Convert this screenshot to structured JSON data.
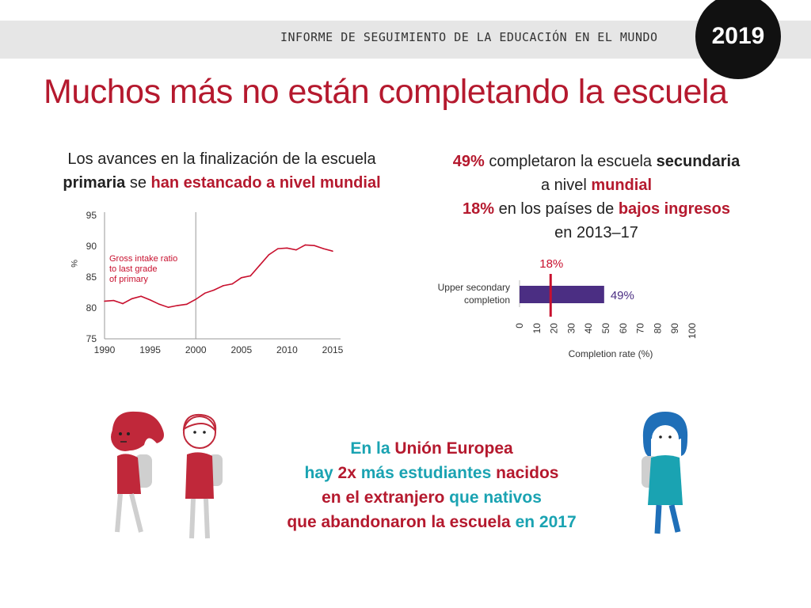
{
  "header": {
    "banner_text": "INFORME DE SEGUIMIENTO DE LA EDUCACIÓN EN EL MUNDO",
    "year": "2019"
  },
  "title": "Muchos más no están completando la escuela",
  "left_text": {
    "l1": "Los avances en la finalización de la escuela",
    "l2a": "primaria",
    "l2b": " se ",
    "l2c": "han estancado a nivel mundial"
  },
  "right_text": {
    "l1a": "49%",
    "l1b": " completaron la escuela ",
    "l1c": "secundaria",
    "l2a": "a nivel ",
    "l2b": "mundial",
    "l3a": "18%",
    "l3b": " en los países de ",
    "l3c": "bajos ingresos",
    "l4": "en 2013–17"
  },
  "eu_text": {
    "a1": "En la ",
    "a2": "Unión Europea",
    "b1": "hay ",
    "b2": "2x",
    "b3": " más estudiantes ",
    "b4": "nacidos",
    "c1": "en el extranjero",
    "c2": " que nativos",
    "d1": "que abandonaron la escuela",
    "d2": " en 2017"
  },
  "colors": {
    "accent_red": "#b5192e",
    "teal": "#1aa3b2",
    "bar_purple": "#4b2e83",
    "line_red": "#c8102e"
  },
  "chart_data": [
    {
      "type": "line",
      "title": "",
      "annotation": [
        "Gross intake ratio",
        "to last grade",
        "of primary"
      ],
      "xlabel": "",
      "ylabel": "%",
      "xlim": [
        1990,
        2015
      ],
      "ylim": [
        75,
        95
      ],
      "x_ticks": [
        "1990",
        "1995",
        "2000",
        "2005",
        "2010",
        "2015"
      ],
      "y_ticks": [
        "95",
        "90",
        "85",
        "80",
        "75"
      ],
      "series": [
        {
          "x": [
            1990,
            1991,
            1992,
            1993,
            1994,
            1995,
            1996,
            1997,
            1998,
            1999,
            2000,
            2001,
            2002,
            2003,
            2004,
            2005,
            2006,
            2007,
            2008,
            2009,
            2010,
            2011,
            2012,
            2013,
            2014,
            2015
          ],
          "values": [
            81.1,
            81.2,
            80.7,
            81.5,
            81.9,
            81.3,
            80.6,
            80.1,
            80.4,
            80.6,
            81.4,
            82.4,
            82.9,
            83.6,
            83.9,
            84.9,
            85.2,
            86.9,
            88.6,
            89.6,
            89.7,
            89.4,
            90.2,
            90.1,
            89.6,
            89.2
          ]
        }
      ],
      "vline_x": 2000
    },
    {
      "type": "bar",
      "orientation": "horizontal",
      "categories": [
        "Upper secondary completion"
      ],
      "category_label_lines": [
        "Upper secondary",
        "completion"
      ],
      "values": [
        49
      ],
      "value_label": "49%",
      "reference_line": {
        "value": 18,
        "label": "18%"
      },
      "xlabel": "Completion rate (%)",
      "xlim": [
        0,
        100
      ],
      "x_ticks": [
        "0",
        "10",
        "20",
        "30",
        "40",
        "50",
        "60",
        "70",
        "80",
        "90",
        "100"
      ]
    }
  ]
}
